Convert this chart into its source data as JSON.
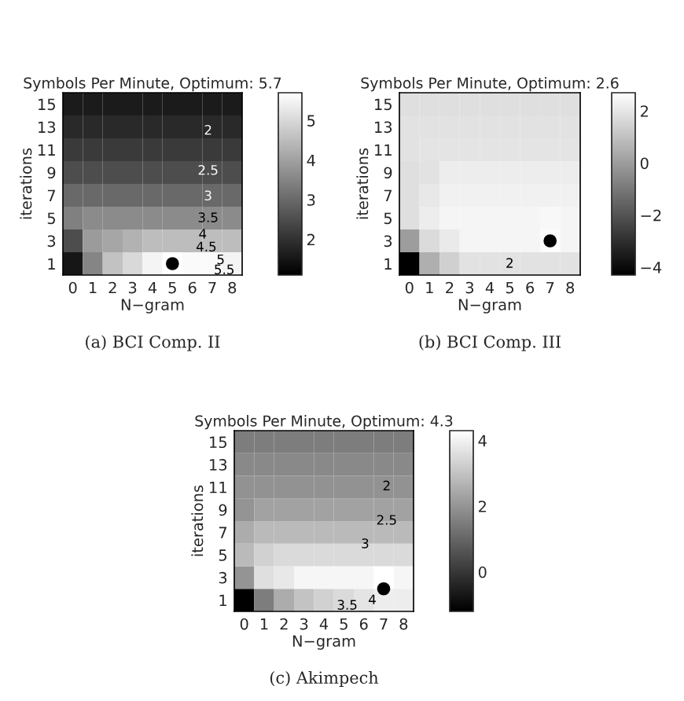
{
  "chart_data": [
    {
      "type": "heatmap",
      "title": "Symbols Per Minute, Optimum: 5.7",
      "xlabel": "N−gram",
      "ylabel": "iterations",
      "categories": [
        "0",
        "1",
        "2",
        "3",
        "4",
        "5",
        "6",
        "7",
        "8"
      ],
      "y_categories": [
        "15",
        "13",
        "11",
        "9",
        "7",
        "5",
        "3",
        "1"
      ],
      "cells": [
        [
          1.6,
          1.6,
          1.6,
          1.6,
          1.6,
          1.6,
          1.6,
          1.6,
          1.6
        ],
        [
          1.85,
          1.85,
          1.85,
          1.85,
          1.85,
          1.85,
          1.85,
          1.85,
          1.85
        ],
        [
          2.15,
          2.15,
          2.15,
          2.15,
          2.15,
          2.15,
          2.15,
          2.15,
          2.15
        ],
        [
          2.5,
          2.5,
          2.5,
          2.5,
          2.5,
          2.5,
          2.5,
          2.5,
          2.5
        ],
        [
          3.0,
          3.0,
          3.0,
          3.0,
          3.0,
          3.0,
          3.0,
          3.0,
          3.0
        ],
        [
          3.4,
          3.6,
          3.6,
          3.6,
          3.6,
          3.6,
          3.6,
          3.6,
          3.6
        ],
        [
          2.5,
          3.9,
          4.1,
          4.3,
          4.5,
          4.5,
          4.5,
          4.5,
          4.5
        ],
        [
          1.5,
          3.5,
          4.6,
          5.0,
          5.5,
          5.7,
          5.6,
          5.6,
          5.5
        ]
      ],
      "clim": [
        1.1,
        5.7
      ],
      "cticks": [
        2,
        3,
        4,
        5
      ],
      "series": [
        {
          "type": "scatter",
          "color": "#000000",
          "x": [
            "0",
            "1",
            "2",
            "3",
            "4",
            "5",
            "6",
            "7",
            "8"
          ],
          "values": [
            null,
            null,
            null,
            null,
            null,
            7,
            null,
            null,
            null
          ]
        }
      ],
      "marker": "circle",
      "annotations": [
        "2",
        "2.5",
        "3",
        "3.5",
        "4",
        "4.5",
        "5",
        "5.5",
        "(a) BCI Comp. II"
      ]
    },
    {
      "type": "heatmap",
      "title": "Symbols Per Minute, Optimum: 2.6",
      "xlabel": "N−gram",
      "ylabel": "iterations",
      "categories": [
        "0",
        "1",
        "2",
        "3",
        "4",
        "5",
        "6",
        "7",
        "8"
      ],
      "y_categories": [
        "15",
        "13",
        "11",
        "9",
        "7",
        "5",
        "3",
        "1"
      ],
      "cells": [
        [
          1.8,
          1.8,
          1.8,
          1.8,
          1.8,
          1.8,
          1.8,
          1.8,
          1.8
        ],
        [
          1.9,
          1.9,
          1.9,
          1.9,
          1.9,
          1.9,
          1.9,
          1.9,
          1.9
        ],
        [
          1.9,
          1.95,
          1.95,
          1.95,
          1.95,
          1.95,
          1.95,
          1.95,
          1.95
        ],
        [
          1.8,
          1.9,
          2.2,
          2.2,
          2.2,
          2.2,
          2.2,
          2.2,
          2.2
        ],
        [
          1.8,
          2.05,
          2.3,
          2.3,
          2.3,
          2.3,
          2.3,
          2.3,
          2.3
        ],
        [
          1.8,
          2.2,
          2.4,
          2.4,
          2.4,
          2.4,
          2.4,
          2.5,
          2.4
        ],
        [
          0,
          1.7,
          2.1,
          2.4,
          2.4,
          2.4,
          2.4,
          2.6,
          2.4
        ],
        [
          -4.3,
          0.5,
          1.4,
          1.9,
          1.9,
          1.9,
          1.9,
          1.9,
          1.9
        ]
      ],
      "clim": [
        -4.3,
        2.7
      ],
      "cticks": [
        {
          "value": -4,
          "label": "−4"
        },
        {
          "value": -2,
          "label": "−2"
        },
        0,
        2
      ],
      "series": [
        {
          "type": "scatter",
          "color": "#000000",
          "x": [
            "0",
            "1",
            "2",
            "3",
            "4",
            "5",
            "6",
            "7",
            "8"
          ],
          "values": [
            null,
            null,
            null,
            null,
            null,
            null,
            null,
            6,
            null
          ]
        }
      ],
      "marker": "circle",
      "annotations": [
        "2",
        "(b) BCI Comp. III"
      ]
    },
    {
      "type": "heatmap",
      "title": "Symbols Per Minute, Optimum: 4.3",
      "xlabel": "N−gram",
      "ylabel": "iterations",
      "categories": [
        "0",
        "1",
        "2",
        "3",
        "4",
        "5",
        "6",
        "7",
        "8"
      ],
      "y_categories": [
        "15",
        "13",
        "11",
        "9",
        "7",
        "5",
        "3",
        "1"
      ],
      "cells": [
        [
          1.5,
          1.5,
          1.5,
          1.5,
          1.5,
          1.5,
          1.5,
          1.5,
          1.5
        ],
        [
          1.75,
          1.75,
          1.75,
          1.75,
          1.75,
          1.75,
          1.75,
          1.75,
          1.75
        ],
        [
          1.95,
          1.95,
          1.95,
          1.95,
          1.95,
          1.95,
          1.95,
          1.95,
          1.95
        ],
        [
          2.0,
          2.3,
          2.3,
          2.3,
          2.3,
          2.3,
          2.3,
          2.3,
          2.3
        ],
        [
          2.5,
          2.8,
          2.8,
          2.8,
          2.8,
          2.8,
          2.8,
          2.8,
          2.8
        ],
        [
          2.8,
          3.3,
          3.5,
          3.5,
          3.5,
          3.5,
          3.5,
          3.5,
          3.5
        ],
        [
          2.0,
          3.6,
          3.8,
          4.1,
          4.1,
          4.1,
          4.1,
          4.3,
          4.1
        ],
        [
          -1.2,
          1.5,
          2.5,
          3.0,
          3.3,
          3.5,
          3.7,
          3.9,
          3.9
        ]
      ],
      "clim": [
        -1.2,
        4.3
      ],
      "cticks": [
        0,
        2,
        4
      ],
      "series": [
        {
          "type": "scatter",
          "color": "#000000",
          "x": [
            "0",
            "1",
            "2",
            "3",
            "4",
            "5",
            "6",
            "7",
            "8"
          ],
          "values": [
            null,
            null,
            null,
            null,
            null,
            null,
            null,
            6.5,
            null
          ]
        }
      ],
      "marker": "circle",
      "annotations": [
        "2",
        "2.5",
        "3",
        "4",
        "3.5",
        "(c) Akimpech"
      ]
    }
  ]
}
